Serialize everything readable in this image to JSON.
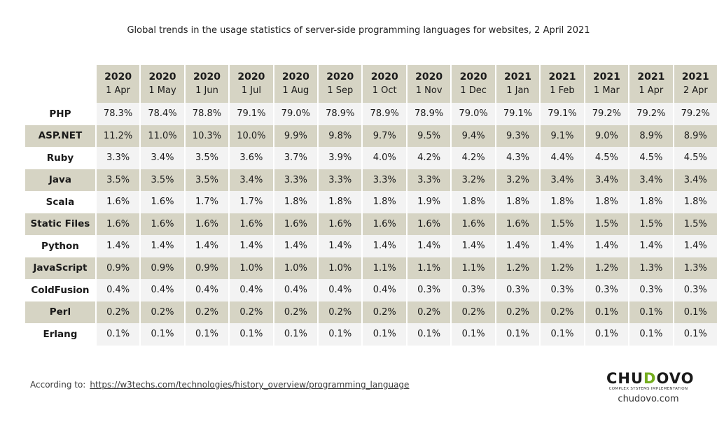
{
  "chart_data": {
    "type": "table",
    "title": "Global trends in the usage statistics of server-side programming languages for websites, 2 April 2021",
    "columns": [
      {
        "year": "2020",
        "day": "1 Apr"
      },
      {
        "year": "2020",
        "day": "1 May"
      },
      {
        "year": "2020",
        "day": "1 Jun"
      },
      {
        "year": "2020",
        "day": "1 Jul"
      },
      {
        "year": "2020",
        "day": "1 Aug"
      },
      {
        "year": "2020",
        "day": "1 Sep"
      },
      {
        "year": "2020",
        "day": "1 Oct"
      },
      {
        "year": "2020",
        "day": "1 Nov"
      },
      {
        "year": "2020",
        "day": "1 Dec"
      },
      {
        "year": "2021",
        "day": "1 Jan"
      },
      {
        "year": "2021",
        "day": "1 Feb"
      },
      {
        "year": "2021",
        "day": "1 Mar"
      },
      {
        "year": "2021",
        "day": "1 Apr"
      },
      {
        "year": "2021",
        "day": "2 Apr"
      }
    ],
    "rows": [
      {
        "label": "PHP",
        "values": [
          "78.3%",
          "78.4%",
          "78.8%",
          "79.1%",
          "79.0%",
          "78.9%",
          "78.9%",
          "78.9%",
          "79.0%",
          "79.1%",
          "79.1%",
          "79.2%",
          "79.2%",
          "79.2%"
        ]
      },
      {
        "label": "ASP.NET",
        "values": [
          "11.2%",
          "11.0%",
          "10.3%",
          "10.0%",
          "9.9%",
          "9.8%",
          "9.7%",
          "9.5%",
          "9.4%",
          "9.3%",
          "9.1%",
          "9.0%",
          "8.9%",
          "8.9%"
        ]
      },
      {
        "label": "Ruby",
        "values": [
          "3.3%",
          "3.4%",
          "3.5%",
          "3.6%",
          "3.7%",
          "3.9%",
          "4.0%",
          "4.2%",
          "4.2%",
          "4.3%",
          "4.4%",
          "4.5%",
          "4.5%",
          "4.5%"
        ]
      },
      {
        "label": "Java",
        "values": [
          "3.5%",
          "3.5%",
          "3.5%",
          "3.4%",
          "3.3%",
          "3.3%",
          "3.3%",
          "3.3%",
          "3.2%",
          "3.2%",
          "3.4%",
          "3.4%",
          "3.4%",
          "3.4%"
        ]
      },
      {
        "label": "Scala",
        "values": [
          "1.6%",
          "1.6%",
          "1.7%",
          "1.7%",
          "1.8%",
          "1.8%",
          "1.8%",
          "1.9%",
          "1.8%",
          "1.8%",
          "1.8%",
          "1.8%",
          "1.8%",
          "1.8%"
        ]
      },
      {
        "label": "Static Files",
        "values": [
          "1.6%",
          "1.6%",
          "1.6%",
          "1.6%",
          "1.6%",
          "1.6%",
          "1.6%",
          "1.6%",
          "1.6%",
          "1.6%",
          "1.5%",
          "1.5%",
          "1.5%",
          "1.5%"
        ]
      },
      {
        "label": "Python",
        "values": [
          "1.4%",
          "1.4%",
          "1.4%",
          "1.4%",
          "1.4%",
          "1.4%",
          "1.4%",
          "1.4%",
          "1.4%",
          "1.4%",
          "1.4%",
          "1.4%",
          "1.4%",
          "1.4%"
        ]
      },
      {
        "label": "JavaScript",
        "values": [
          "0.9%",
          "0.9%",
          "0.9%",
          "1.0%",
          "1.0%",
          "1.0%",
          "1.1%",
          "1.1%",
          "1.1%",
          "1.2%",
          "1.2%",
          "1.2%",
          "1.3%",
          "1.3%"
        ]
      },
      {
        "label": "ColdFusion",
        "values": [
          "0.4%",
          "0.4%",
          "0.4%",
          "0.4%",
          "0.4%",
          "0.4%",
          "0.4%",
          "0.3%",
          "0.3%",
          "0.3%",
          "0.3%",
          "0.3%",
          "0.3%",
          "0.3%"
        ]
      },
      {
        "label": "Perl",
        "values": [
          "0.2%",
          "0.2%",
          "0.2%",
          "0.2%",
          "0.2%",
          "0.2%",
          "0.2%",
          "0.2%",
          "0.2%",
          "0.2%",
          "0.2%",
          "0.1%",
          "0.1%",
          "0.1%"
        ]
      },
      {
        "label": "Erlang",
        "values": [
          "0.1%",
          "0.1%",
          "0.1%",
          "0.1%",
          "0.1%",
          "0.1%",
          "0.1%",
          "0.1%",
          "0.1%",
          "0.1%",
          "0.1%",
          "0.1%",
          "0.1%",
          "0.1%"
        ]
      }
    ]
  },
  "source": {
    "prefix": "According to:",
    "link": "https://w3techs.com/technologies/history_overview/programming_language"
  },
  "logo": {
    "word_pre": "CHU",
    "word_accent": "D",
    "word_post": "OVO",
    "tagline": "COMPLEX SYSTEMS IMPLEMENTATION",
    "site": "chudovo.com"
  },
  "colors": {
    "header_bg": "#d6d4c4",
    "stripe_bg": "#d6d4c4",
    "cell_bg": "#f3f3f3",
    "logo_accent": "#74ad1e"
  }
}
